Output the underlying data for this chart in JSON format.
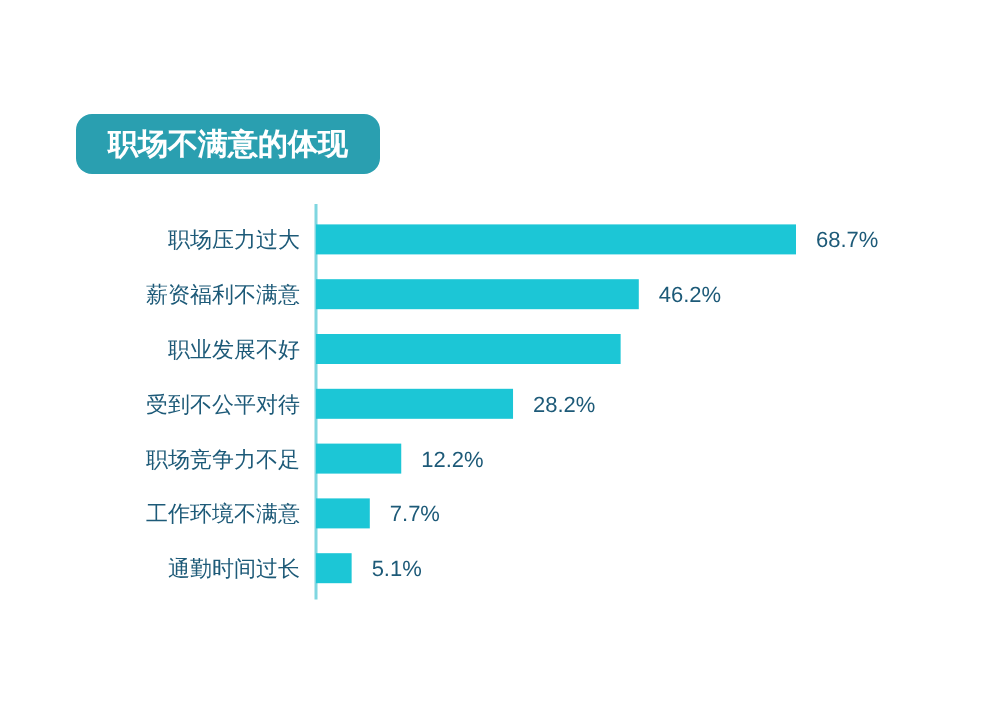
{
  "chart_data": {
    "type": "bar",
    "orientation": "horizontal",
    "title": "职场不满意的体现",
    "categories": [
      "职场压力过大",
      "薪资福利不满意",
      "职业发展不好",
      "受到不公平对待",
      "职场竞争力不足",
      "工作环境不满意",
      "通勤时间过长"
    ],
    "values": [
      68.7,
      46.2,
      43.6,
      28.2,
      12.2,
      7.7,
      5.1
    ],
    "value_labels": [
      "68.7%",
      "46.2%",
      null,
      "28.2%",
      "12.2%",
      "7.7%",
      "5.1%"
    ],
    "color": "#1cc6d6"
  }
}
